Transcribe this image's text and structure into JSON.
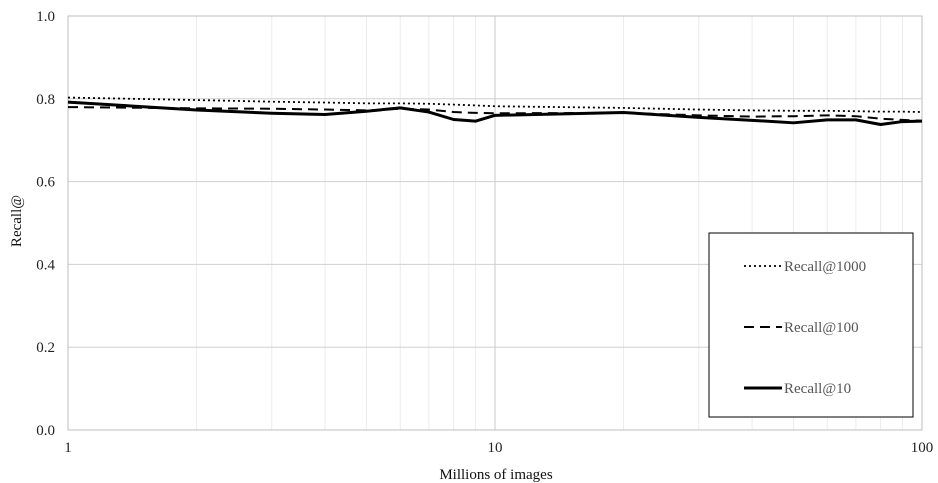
{
  "chart_data": {
    "type": "line",
    "title": "",
    "xlabel": "Millions of images",
    "ylabel": "Recall@",
    "xscale": "log",
    "xlim": [
      1,
      100
    ],
    "ylim": [
      0,
      1
    ],
    "x_ticks": [
      "1",
      "10",
      "100"
    ],
    "y_ticks": [
      "0.0",
      "0.2",
      "0.4",
      "0.6",
      "0.8",
      "1.0"
    ],
    "grid": true,
    "legend_position": "bottom-right",
    "series": [
      {
        "name": "Recall@1000",
        "style": "dotted",
        "color": "#000000",
        "x": [
          1,
          2,
          3,
          4,
          5,
          6,
          7,
          8,
          9,
          10,
          20,
          30,
          40,
          50,
          60,
          70,
          80,
          90,
          100
        ],
        "y": [
          0.803,
          0.797,
          0.793,
          0.791,
          0.789,
          0.789,
          0.788,
          0.786,
          0.784,
          0.782,
          0.778,
          0.774,
          0.772,
          0.771,
          0.771,
          0.77,
          0.769,
          0.769,
          0.768
        ]
      },
      {
        "name": "Recall@100",
        "style": "dashed",
        "color": "#000000",
        "x": [
          1,
          2,
          3,
          4,
          5,
          6,
          7,
          8,
          9,
          10,
          20,
          30,
          40,
          50,
          60,
          70,
          80,
          90,
          100
        ],
        "y": [
          0.78,
          0.777,
          0.776,
          0.774,
          0.772,
          0.776,
          0.774,
          0.768,
          0.766,
          0.765,
          0.766,
          0.76,
          0.757,
          0.758,
          0.76,
          0.758,
          0.752,
          0.749,
          0.747
        ]
      },
      {
        "name": "Recall@10",
        "style": "solid",
        "color": "#000000",
        "x": [
          1,
          2,
          3,
          4,
          5,
          6,
          7,
          8,
          9,
          10,
          20,
          30,
          40,
          50,
          60,
          70,
          80,
          90,
          100
        ],
        "y": [
          0.792,
          0.773,
          0.765,
          0.762,
          0.77,
          0.778,
          0.768,
          0.75,
          0.746,
          0.76,
          0.767,
          0.755,
          0.748,
          0.742,
          0.749,
          0.749,
          0.738,
          0.745,
          0.746
        ]
      }
    ]
  }
}
